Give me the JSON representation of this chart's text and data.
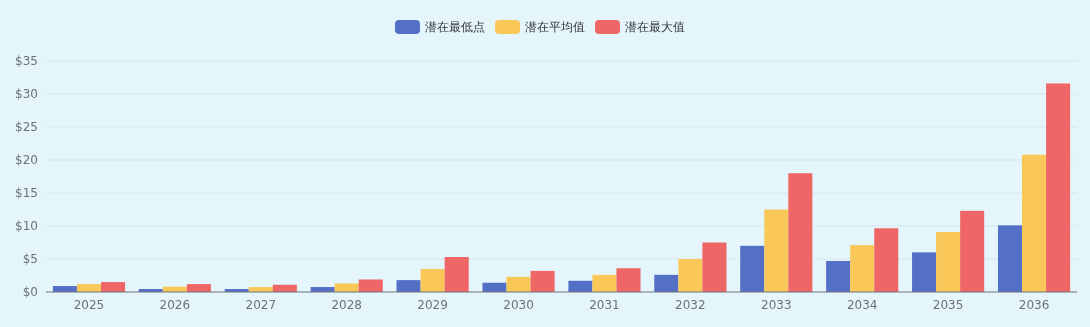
{
  "chart_data": {
    "type": "bar",
    "categories": [
      "2025",
      "2026",
      "2027",
      "2028",
      "2029",
      "2030",
      "2031",
      "2032",
      "2033",
      "2034",
      "2035",
      "2036"
    ],
    "series": [
      {
        "name": "潜在最低点",
        "color": "#5470c6",
        "values": [
          0.9,
          0.45,
          0.45,
          0.75,
          1.8,
          1.4,
          1.7,
          2.6,
          7.0,
          4.7,
          6.0,
          10.1
        ]
      },
      {
        "name": "潜在平均值",
        "color": "#fac858",
        "values": [
          1.2,
          0.8,
          0.75,
          1.3,
          3.5,
          2.3,
          2.6,
          5.0,
          12.5,
          7.1,
          9.1,
          20.8
        ]
      },
      {
        "name": "潜在最大值",
        "color": "#ee6666",
        "values": [
          1.5,
          1.2,
          1.1,
          1.9,
          5.3,
          3.2,
          3.6,
          7.5,
          18.0,
          9.65,
          12.3,
          31.6
        ]
      }
    ],
    "ylim": [
      0,
      35
    ],
    "yticks": [
      {
        "value": 0,
        "label": "$0"
      },
      {
        "value": 5,
        "label": "$5"
      },
      {
        "value": 10,
        "label": "$10"
      },
      {
        "value": 15,
        "label": "$15"
      },
      {
        "value": 20,
        "label": "$20"
      },
      {
        "value": 25,
        "label": "$25"
      },
      {
        "value": 30,
        "label": "$30"
      },
      {
        "value": 35,
        "label": "$35"
      }
    ],
    "grid": "y",
    "legend": "top"
  }
}
